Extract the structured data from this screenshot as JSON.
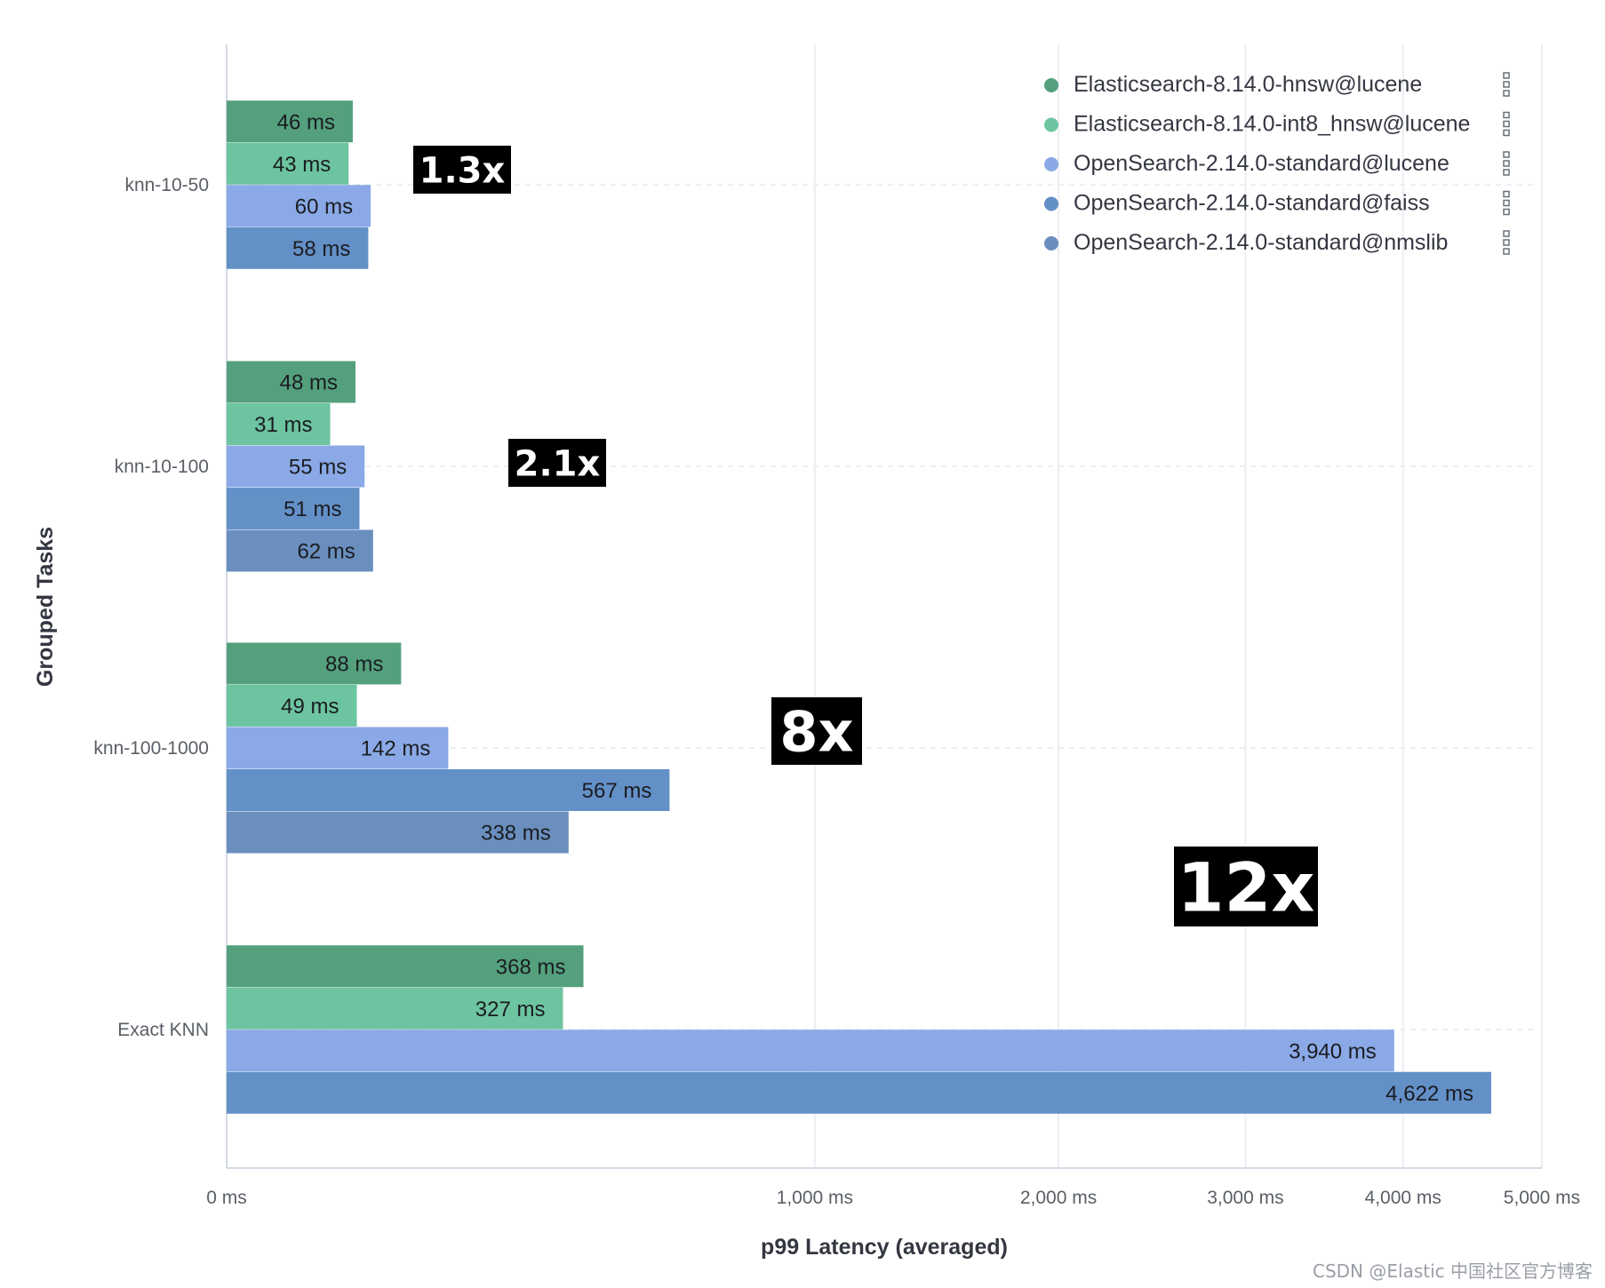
{
  "chart_data": {
    "type": "bar",
    "orientation": "horizontal",
    "xlabel": "p99 Latency (averaged)",
    "ylabel": "Grouped Tasks",
    "x_scale": "sqrt",
    "xlim": [
      0,
      5000
    ],
    "x_ticks": [
      {
        "value": 0,
        "label": "0 ms"
      },
      {
        "value": 1000,
        "label": "1,000 ms"
      },
      {
        "value": 2000,
        "label": "2,000 ms"
      },
      {
        "value": 3000,
        "label": "3,000 ms"
      },
      {
        "value": 4000,
        "label": "4,000 ms"
      },
      {
        "value": 5000,
        "label": "5,000 ms"
      }
    ],
    "categories": [
      "knn-10-50",
      "knn-10-100",
      "knn-100-1000",
      "Exact KNN"
    ],
    "series": [
      {
        "name": "Elasticsearch-8.14.0-hnsw@lucene",
        "color": "#54a07d",
        "values": [
          46,
          48,
          88,
          368
        ],
        "labels": [
          "46 ms",
          "48 ms",
          "88 ms",
          "368 ms"
        ]
      },
      {
        "name": "Elasticsearch-8.14.0-int8_hnsw@lucene",
        "color": "#6dc4a0",
        "values": [
          43,
          31,
          49,
          327
        ],
        "labels": [
          "43 ms",
          "31 ms",
          "49 ms",
          "327 ms"
        ]
      },
      {
        "name": "OpenSearch-2.14.0-standard@lucene",
        "color": "#8aa9e6",
        "values": [
          60,
          55,
          142,
          3940
        ],
        "labels": [
          "60 ms",
          "55 ms",
          "142 ms",
          "3,940 ms"
        ]
      },
      {
        "name": "OpenSearch-2.14.0-standard@faiss",
        "color": "#6490c8",
        "values": [
          58,
          51,
          567,
          4622
        ],
        "labels": [
          "58 ms",
          "51 ms",
          "567 ms",
          "4,622 ms"
        ]
      },
      {
        "name": "OpenSearch-2.14.0-standard@nmslib",
        "color": "#6a8fbe",
        "values": [
          null,
          62,
          338,
          null
        ],
        "labels": [
          "",
          "62 ms",
          "338 ms",
          ""
        ]
      }
    ],
    "annotations": [
      {
        "category": "knn-10-50",
        "text": "1.3x",
        "size": "small"
      },
      {
        "category": "knn-10-100",
        "text": "2.1x",
        "size": "small"
      },
      {
        "category": "knn-100-1000",
        "text": "8x",
        "size": "medium"
      },
      {
        "category": "Exact KNN",
        "text": "12x",
        "size": "large"
      }
    ],
    "legend_position": "top-right",
    "grid": true
  },
  "watermark": "CSDN @Elastic 中国社区官方博客"
}
